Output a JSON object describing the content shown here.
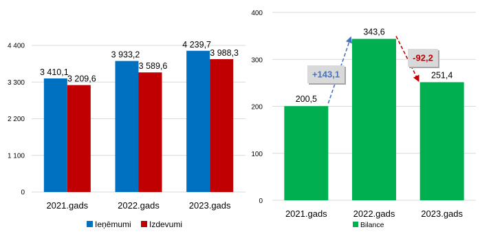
{
  "colors": {
    "revenue": "#0070c0",
    "expenses": "#c00000",
    "balance": "#00b050",
    "increase": "#4472c4",
    "decrease": "#c00000",
    "grid": "#d9d9d9",
    "callout_bg": "#d9d9d9"
  },
  "chart_data": [
    {
      "type": "bar",
      "categories": [
        "2021.gads",
        "2022.gads",
        "2023.gads"
      ],
      "series": [
        {
          "name": "Ieņēmumi",
          "values": [
            3410.1,
            3933.2,
            4239.7
          ],
          "labels": [
            "3 410,1",
            "3 933,2",
            "4 239,7"
          ]
        },
        {
          "name": "Izdevumi",
          "values": [
            3209.6,
            3589.6,
            3988.3
          ],
          "labels": [
            "3 209,6",
            "3 589,6",
            "3 988,3"
          ]
        }
      ],
      "ylim": [
        0,
        4400
      ],
      "yticks": [
        0,
        1100,
        2200,
        3300,
        4400
      ],
      "ytick_labels": [
        "0",
        "1 100",
        "2 200",
        "3 300",
        "4 400"
      ],
      "grid": true,
      "legend": "bottom"
    },
    {
      "type": "bar",
      "categories": [
        "2021.gads",
        "2022.gads",
        "2023.gads"
      ],
      "series": [
        {
          "name": "Bilance",
          "values": [
            200.5,
            343.6,
            251.4
          ],
          "labels": [
            "200,5",
            "343,6",
            "251,4"
          ]
        }
      ],
      "ylim": [
        0,
        400
      ],
      "yticks": [
        0,
        100,
        200,
        300,
        400
      ],
      "ytick_labels": [
        "0",
        "100",
        "200",
        "300",
        "400"
      ],
      "grid": true,
      "legend": "bottom",
      "annotations": [
        {
          "from": 0,
          "to": 1,
          "text": "+143,1",
          "kind": "increase"
        },
        {
          "from": 1,
          "to": 2,
          "text": "-92,2",
          "kind": "decrease"
        }
      ]
    }
  ]
}
